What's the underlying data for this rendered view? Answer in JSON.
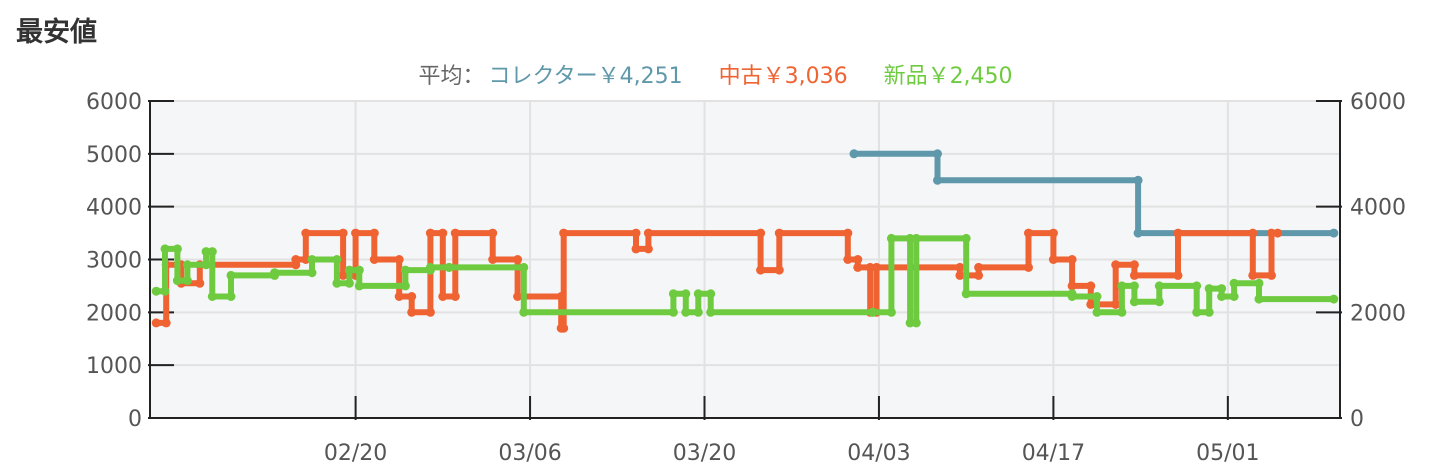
{
  "heading": "最安値",
  "average": {
    "prefix": "平均：",
    "items": [
      {
        "label": "コレクター￥4,251",
        "color": "#5f98aa"
      },
      {
        "label": "中古￥3,036",
        "color": "#ef6333"
      },
      {
        "label": "新品￥2,450",
        "color": "#6ecb3f"
      }
    ]
  },
  "chart_data": {
    "type": "line",
    "step": true,
    "x_ticks": [
      "02/20",
      "03/06",
      "03/20",
      "04/03",
      "04/17",
      "05/01"
    ],
    "x_tick_positions": [
      16.5,
      30.5,
      44.5,
      58.5,
      72.5,
      86.5
    ],
    "x_range": [
      0,
      95.5
    ],
    "y_ticks_left": [
      "0",
      "1000",
      "2000",
      "3000",
      "4000",
      "5000",
      "6000"
    ],
    "y_ticks_right": [
      "0",
      "2000",
      "4000",
      "6000"
    ],
    "ylim": [
      0,
      6000
    ],
    "grid": true,
    "series": [
      {
        "name": "コレクター",
        "color": "#5f98aa",
        "points": [
          [
            56.5,
            5000
          ],
          [
            63.2,
            5000
          ],
          [
            63.2,
            4500
          ],
          [
            79.3,
            4500
          ],
          [
            79.3,
            3500
          ],
          [
            95,
            3500
          ]
        ]
      },
      {
        "name": "中古",
        "color": "#ef6333",
        "points": [
          [
            0.5,
            1800
          ],
          [
            1.3,
            1800
          ],
          [
            1.3,
            2900
          ],
          [
            2.5,
            2900
          ],
          [
            2.5,
            2550
          ],
          [
            4,
            2550
          ],
          [
            4,
            2900
          ],
          [
            11.7,
            2900
          ],
          [
            11.7,
            3000
          ],
          [
            12.5,
            3000
          ],
          [
            12.5,
            3500
          ],
          [
            15.5,
            3500
          ],
          [
            15.5,
            2700
          ],
          [
            16.5,
            2700
          ],
          [
            16.5,
            3500
          ],
          [
            18,
            3500
          ],
          [
            18,
            3000
          ],
          [
            20,
            3000
          ],
          [
            20,
            2300
          ],
          [
            21,
            2300
          ],
          [
            21,
            2000
          ],
          [
            22.5,
            2000
          ],
          [
            22.5,
            3500
          ],
          [
            23.5,
            3500
          ],
          [
            23.5,
            2300
          ],
          [
            24.5,
            2300
          ],
          [
            24.5,
            3500
          ],
          [
            27.5,
            3500
          ],
          [
            27.5,
            3000
          ],
          [
            29.5,
            3000
          ],
          [
            29.5,
            2300
          ],
          [
            33,
            2300
          ],
          [
            33,
            1700
          ],
          [
            33.2,
            1700
          ],
          [
            33.2,
            3500
          ],
          [
            39,
            3500
          ],
          [
            39,
            3200
          ],
          [
            40,
            3200
          ],
          [
            40,
            3500
          ],
          [
            49,
            3500
          ],
          [
            49,
            2800
          ],
          [
            50.5,
            2800
          ],
          [
            50.5,
            3500
          ],
          [
            56,
            3500
          ],
          [
            56,
            3000
          ],
          [
            56.8,
            3000
          ],
          [
            56.8,
            2850
          ],
          [
            57.8,
            2850
          ],
          [
            57.8,
            2000
          ],
          [
            58.3,
            2000
          ],
          [
            58.3,
            2850
          ],
          [
            65,
            2850
          ],
          [
            65,
            2700
          ],
          [
            66.5,
            2700
          ],
          [
            66.5,
            2850
          ],
          [
            70.5,
            2850
          ],
          [
            70.5,
            3500
          ],
          [
            72.5,
            3500
          ],
          [
            72.5,
            3000
          ],
          [
            74,
            3000
          ],
          [
            74,
            2500
          ],
          [
            75.5,
            2500
          ],
          [
            75.5,
            2150
          ],
          [
            77.5,
            2150
          ],
          [
            77.5,
            2900
          ],
          [
            79,
            2900
          ],
          [
            79,
            2700
          ],
          [
            82.5,
            2700
          ],
          [
            82.5,
            3500
          ],
          [
            88.5,
            3500
          ],
          [
            88.5,
            2700
          ],
          [
            90,
            2700
          ],
          [
            90,
            3500
          ],
          [
            90.5,
            3500
          ]
        ]
      },
      {
        "name": "新品",
        "color": "#6ecb3f",
        "points": [
          [
            0.5,
            2400
          ],
          [
            1.2,
            2400
          ],
          [
            1.2,
            3200
          ],
          [
            2.2,
            3200
          ],
          [
            2.2,
            2600
          ],
          [
            3,
            2600
          ],
          [
            3,
            2900
          ],
          [
            4.5,
            2900
          ],
          [
            4.5,
            3150
          ],
          [
            5,
            3150
          ],
          [
            5,
            2300
          ],
          [
            6.5,
            2300
          ],
          [
            6.5,
            2700
          ],
          [
            10,
            2700
          ],
          [
            10,
            2750
          ],
          [
            13,
            2750
          ],
          [
            13,
            3000
          ],
          [
            15,
            3000
          ],
          [
            15,
            2550
          ],
          [
            16,
            2550
          ],
          [
            16,
            2800
          ],
          [
            16.8,
            2800
          ],
          [
            16.8,
            2500
          ],
          [
            20.5,
            2500
          ],
          [
            20.5,
            2800
          ],
          [
            22.5,
            2800
          ],
          [
            22.5,
            2850
          ],
          [
            24,
            2850
          ],
          [
            24,
            2850
          ],
          [
            30,
            2850
          ],
          [
            30,
            2000
          ],
          [
            42,
            2000
          ],
          [
            42,
            2350
          ],
          [
            43,
            2350
          ],
          [
            43,
            2000
          ],
          [
            44,
            2000
          ],
          [
            44,
            2350
          ],
          [
            45,
            2350
          ],
          [
            45,
            2000
          ],
          [
            58,
            2000
          ],
          [
            58,
            2000
          ],
          [
            59.5,
            2000
          ],
          [
            59.5,
            3400
          ],
          [
            61,
            3400
          ],
          [
            61,
            1800
          ],
          [
            61.5,
            1800
          ],
          [
            61.5,
            3400
          ],
          [
            65.5,
            3400
          ],
          [
            65.5,
            2350
          ],
          [
            74,
            2350
          ],
          [
            74,
            2300
          ],
          [
            76,
            2300
          ],
          [
            76,
            2000
          ],
          [
            78,
            2000
          ],
          [
            78,
            2500
          ],
          [
            79,
            2500
          ],
          [
            79,
            2200
          ],
          [
            81,
            2200
          ],
          [
            81,
            2500
          ],
          [
            84,
            2500
          ],
          [
            84,
            2000
          ],
          [
            85,
            2000
          ],
          [
            85,
            2450
          ],
          [
            86,
            2450
          ],
          [
            86,
            2300
          ],
          [
            87,
            2300
          ],
          [
            87,
            2550
          ],
          [
            89,
            2550
          ],
          [
            89,
            2250
          ],
          [
            95,
            2250
          ]
        ]
      }
    ]
  }
}
